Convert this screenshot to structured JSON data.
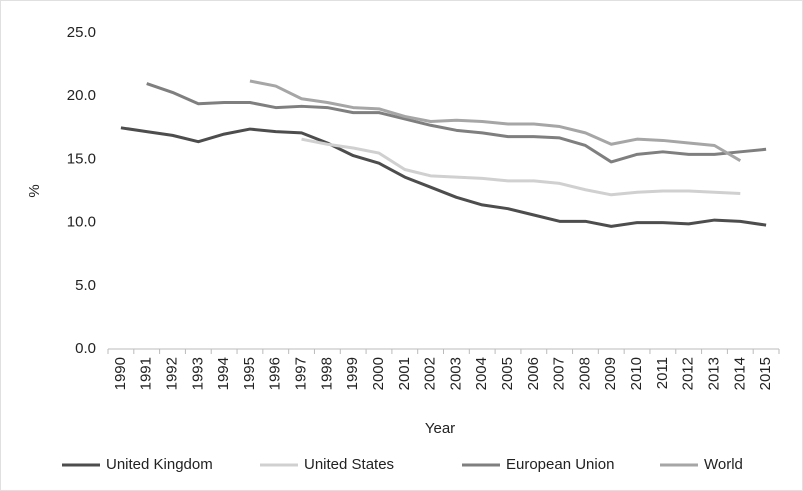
{
  "chart_data": {
    "type": "line",
    "x_label": "Year",
    "y_label": "%",
    "categories": [
      "1990",
      "1991",
      "1992",
      "1993",
      "1994",
      "1995",
      "1996",
      "1997",
      "1998",
      "1999",
      "2000",
      "2001",
      "2002",
      "2003",
      "2004",
      "2005",
      "2006",
      "2007",
      "2008",
      "2009",
      "2010",
      "2011",
      "2012",
      "2013",
      "2014",
      "2015"
    ],
    "series": [
      {
        "name": "United Kingdom",
        "color": "#4d4d4d",
        "values": [
          17.5,
          17.2,
          16.9,
          16.4,
          17.0,
          17.4,
          17.2,
          17.1,
          16.3,
          15.3,
          14.7,
          13.6,
          12.8,
          12.0,
          11.4,
          11.1,
          10.6,
          10.1,
          10.1,
          9.7,
          10.0,
          10.0,
          9.9,
          10.2,
          10.1,
          9.8
        ]
      },
      {
        "name": "United States",
        "color": "#d0d0d0",
        "values": [
          null,
          null,
          null,
          null,
          null,
          null,
          null,
          16.6,
          16.2,
          15.9,
          15.5,
          14.2,
          13.7,
          13.6,
          13.5,
          13.3,
          13.3,
          13.1,
          12.6,
          12.2,
          12.4,
          12.5,
          12.5,
          12.4,
          12.3,
          null
        ]
      },
      {
        "name": "European Union",
        "color": "#7f7f7f",
        "values": [
          null,
          21.0,
          20.3,
          19.4,
          19.5,
          19.5,
          19.1,
          19.2,
          19.1,
          18.7,
          18.7,
          18.2,
          17.7,
          17.3,
          17.1,
          16.8,
          16.8,
          16.7,
          16.1,
          14.8,
          15.4,
          15.6,
          15.4,
          15.4,
          15.6,
          15.8
        ]
      },
      {
        "name": "World",
        "color": "#a6a6a6",
        "values": [
          null,
          null,
          null,
          null,
          null,
          21.2,
          20.8,
          19.8,
          19.5,
          19.1,
          19.0,
          18.4,
          18.0,
          18.1,
          18.0,
          17.8,
          17.8,
          17.6,
          17.1,
          16.2,
          16.6,
          16.5,
          16.3,
          16.1,
          14.9,
          null
        ]
      }
    ],
    "ylim": [
      0,
      25
    ],
    "yticks": [
      {
        "value": 0,
        "label": "0.0"
      },
      {
        "value": 5,
        "label": "5.0"
      },
      {
        "value": 10,
        "label": "10.0"
      },
      {
        "value": 15,
        "label": "15.0"
      },
      {
        "value": 20,
        "label": "20.0"
      },
      {
        "value": 25,
        "label": "25.0"
      }
    ],
    "grid": false,
    "legend": "bottom"
  }
}
